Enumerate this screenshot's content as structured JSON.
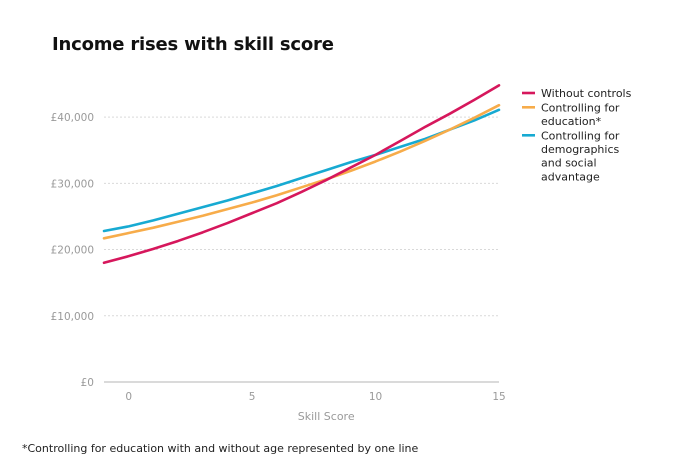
{
  "chart_data": {
    "type": "line",
    "title": "Income rises with skill score",
    "xlabel": "Skill Score",
    "ylabel": "",
    "xlim": [
      -1,
      15
    ],
    "ylim": [
      0,
      45000
    ],
    "x_ticks": [
      0,
      5,
      10,
      15
    ],
    "x_tick_labels": [
      "0",
      "5",
      "10",
      "15"
    ],
    "y_ticks": [
      0,
      10000,
      20000,
      30000,
      40000
    ],
    "y_tick_labels": [
      "£0",
      "£10,000",
      "£20,000",
      "£30,000",
      "£40,000"
    ],
    "grid": "horizontal dashed",
    "legend_position": "right",
    "x": [
      -1,
      0,
      1,
      2,
      3,
      4,
      5,
      6,
      7,
      8,
      9,
      10,
      11,
      12,
      13,
      14,
      15
    ],
    "series": [
      {
        "name": "Without controls",
        "color": "#d6175c",
        "legend_lines": [
          "Without controls"
        ],
        "values": [
          18000,
          19000,
          20100,
          21300,
          22600,
          24000,
          25500,
          27000,
          28700,
          30500,
          32400,
          34300,
          36400,
          38500,
          40500,
          42600,
          44800
        ]
      },
      {
        "name": "Controlling for education*",
        "color": "#f7ac4a",
        "legend_lines": [
          "Controlling for",
          "education*"
        ],
        "values": [
          21700,
          22500,
          23300,
          24200,
          25100,
          26100,
          27100,
          28200,
          29400,
          30600,
          31900,
          33300,
          34800,
          36400,
          38100,
          39900,
          41800
        ]
      },
      {
        "name": "Controlling for demographics and social advantage",
        "color": "#17aad2",
        "legend_lines": [
          "Controlling for",
          "demographics",
          "and social",
          "advantage"
        ],
        "values": [
          22800,
          23500,
          24400,
          25400,
          26400,
          27400,
          28500,
          29600,
          30800,
          32000,
          33200,
          34300,
          35500,
          36700,
          38100,
          39500,
          41100
        ]
      }
    ],
    "footnote": "*Controlling for education with and without age represented by one line"
  }
}
